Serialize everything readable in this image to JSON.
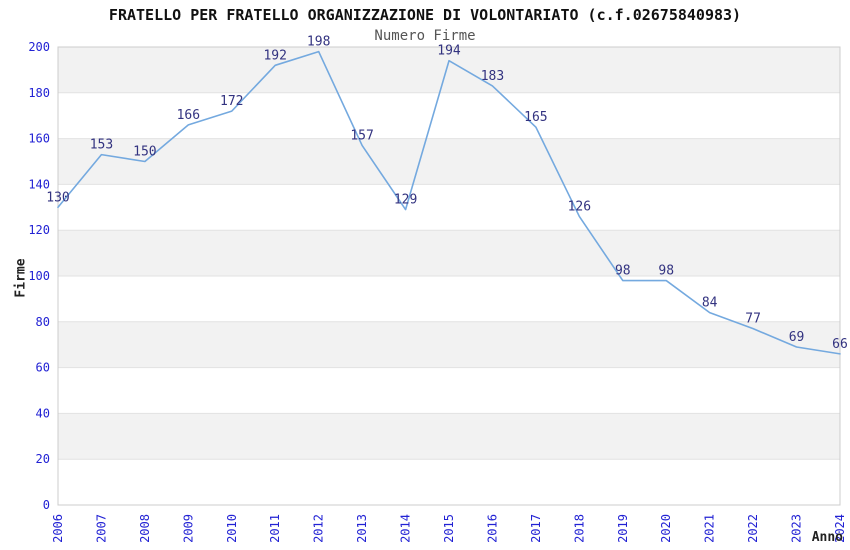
{
  "page": {
    "background": "#ffffff"
  },
  "chart_data": {
    "type": "line",
    "title": "FRATELLO PER FRATELLO ORGANIZZAZIONE DI VOLONTARIATO (c.f.02675840983)",
    "subtitle": "Numero Firme",
    "xlabel": "Anno",
    "ylabel": "Firme",
    "categories": [
      "2006",
      "2007",
      "2008",
      "2009",
      "2010",
      "2011",
      "2012",
      "2013",
      "2014",
      "2015",
      "2016",
      "2017",
      "2018",
      "2019",
      "2020",
      "2021",
      "2022",
      "2023",
      "2024"
    ],
    "series": [
      {
        "name": "Numero Firme",
        "values": [
          130,
          153,
          150,
          166,
          172,
          192,
          198,
          157,
          129,
          194,
          183,
          165,
          126,
          98,
          98,
          84,
          77,
          69,
          66
        ]
      }
    ],
    "ylim": [
      0,
      200
    ],
    "ytick_step": 20,
    "yticks": [
      0,
      20,
      40,
      60,
      80,
      100,
      120,
      140,
      160,
      180,
      200
    ],
    "grid": "horizontal",
    "legend": "none",
    "band_fill_alternate": true,
    "data_labels_visible": true,
    "colors": {
      "line": "#74a9df",
      "band": "#f2f2f2",
      "gridline": "#e2e2e2",
      "border": "#cccccc",
      "tick_label": "#2222d4",
      "data_label": "#333380",
      "title": "#111111",
      "subtitle": "#555555",
      "axis_title": "#222222"
    }
  }
}
